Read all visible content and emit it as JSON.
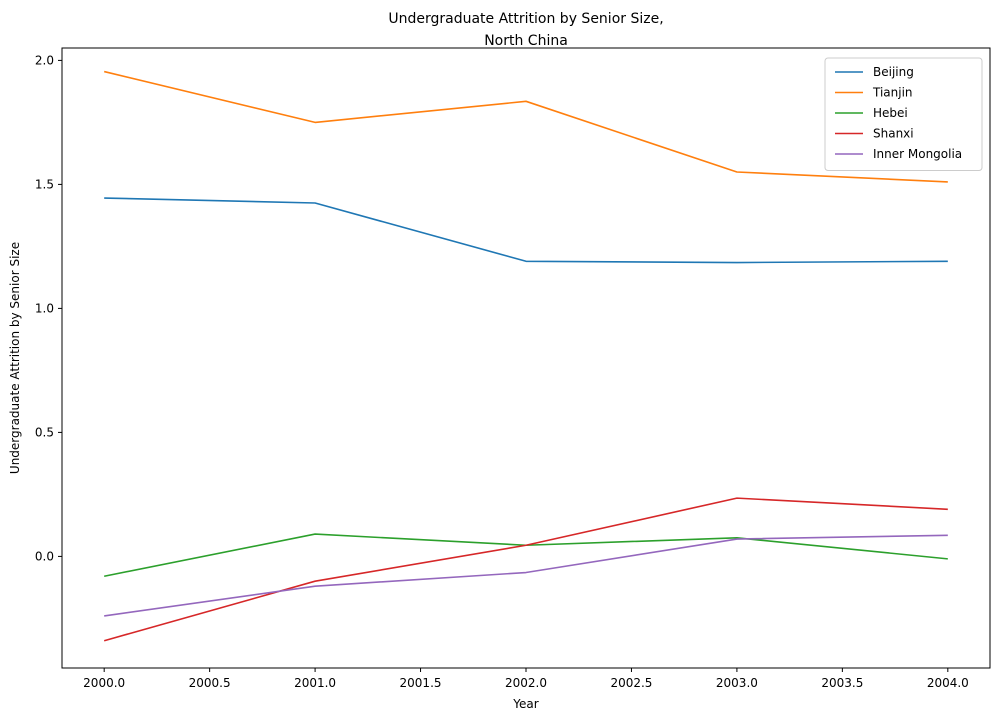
{
  "chart_data": {
    "type": "line",
    "title_lines": [
      "Undergraduate Attrition by Senior Size,",
      "North China"
    ],
    "xlabel": "Year",
    "ylabel": "Undergraduate Attrition by Senior Size",
    "x": [
      2000,
      2001,
      2002,
      2003,
      2004
    ],
    "xlim": [
      1999.8,
      2004.2
    ],
    "ylim": [
      -0.45,
      2.05
    ],
    "xticks": [
      2000.0,
      2000.5,
      2001.0,
      2001.5,
      2002.0,
      2002.5,
      2003.0,
      2003.5,
      2004.0
    ],
    "xtick_labels": [
      "2000.0",
      "2000.5",
      "2001.0",
      "2001.5",
      "2002.0",
      "2002.5",
      "2003.0",
      "2003.5",
      "2004.0"
    ],
    "yticks": [
      0.0,
      0.5,
      1.0,
      1.5,
      2.0
    ],
    "ytick_labels": [
      "0.0",
      "0.5",
      "1.0",
      "1.5",
      "2.0"
    ],
    "grid": false,
    "legend_position": "top-right",
    "series": [
      {
        "name": "Beijing",
        "color": "#1f77b4",
        "values": [
          1.445,
          1.425,
          1.19,
          1.185,
          1.19
        ]
      },
      {
        "name": "Tianjin",
        "color": "#ff7f0e",
        "values": [
          1.955,
          1.75,
          1.835,
          1.55,
          1.51
        ]
      },
      {
        "name": "Hebei",
        "color": "#2ca02c",
        "values": [
          -0.08,
          0.09,
          0.045,
          0.075,
          -0.01
        ]
      },
      {
        "name": "Shanxi",
        "color": "#d62728",
        "values": [
          -0.34,
          -0.1,
          0.045,
          0.235,
          0.19
        ]
      },
      {
        "name": "Inner Mongolia",
        "color": "#9467bd",
        "values": [
          -0.24,
          -0.12,
          -0.065,
          0.07,
          0.085
        ]
      }
    ]
  }
}
